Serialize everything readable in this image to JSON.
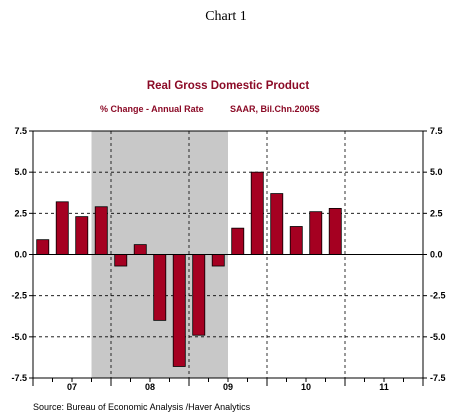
{
  "heading": "Chart 1",
  "source": "Source:  Bureau of Economic Analysis /Haver Analytics",
  "colors": {
    "bar": "#a50021",
    "title": "#8b0a26",
    "recession": "#c8c8c8",
    "axis": "#000000"
  },
  "chart_data": {
    "type": "bar",
    "title": "Real Gross Domestic Product",
    "subtitle_left": "% Change - Annual Rate",
    "subtitle_right": "SAAR, Bil.Chn.2005$",
    "xlabel": "",
    "ylabel": "",
    "ylim": [
      -7.5,
      7.5
    ],
    "yticks": [
      "7.5",
      "5.0",
      "2.5",
      "0.0",
      "-2.5",
      "-5.0",
      "-7.5"
    ],
    "year_labels": [
      "07",
      "08",
      "09",
      "10",
      "11"
    ],
    "quarters_start": "2007Q1",
    "quarters_shown": 20,
    "values": [
      0.9,
      3.2,
      2.3,
      2.9,
      -0.7,
      0.6,
      -4.0,
      -6.8,
      -4.9,
      -0.7,
      1.6,
      5.0,
      3.7,
      1.7,
      2.6,
      2.8
    ],
    "recession_shading": {
      "from": "2007Q4",
      "to": "2009Q2"
    },
    "grid": true,
    "legend": "none"
  }
}
